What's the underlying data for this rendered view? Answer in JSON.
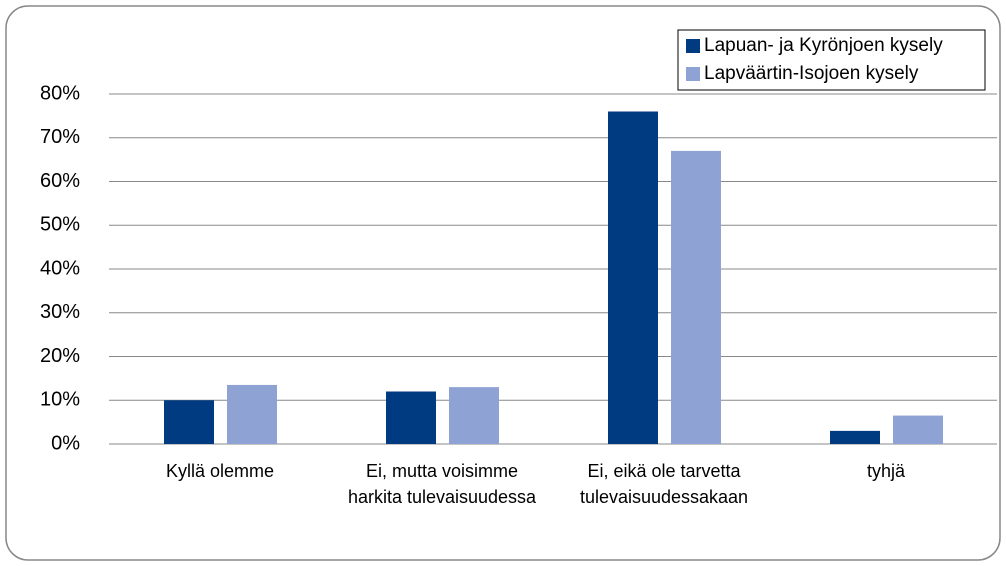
{
  "chart_data": {
    "type": "bar",
    "categories": [
      "Kyllä olemme",
      "Ei, mutta voisimme harkita tulevaisuudessa",
      "Ei, eikä ole tarvetta tulevaisuudessakaan",
      "tyhjä"
    ],
    "series": [
      {
        "name": "Lapuan- ja Kyrönjoen kysely",
        "color": "#003a80",
        "values": [
          10,
          12,
          76,
          3
        ]
      },
      {
        "name": "Lapväärtin-Isojoen kysely",
        "color": "#8fa2d4",
        "values": [
          13.5,
          13,
          67,
          6.5
        ]
      }
    ],
    "ylim": [
      0,
      80
    ],
    "yticks": [
      {
        "value": 0,
        "label": "0%"
      },
      {
        "value": 10,
        "label": "10%"
      },
      {
        "value": 20,
        "label": "20%"
      },
      {
        "value": 30,
        "label": "30%"
      },
      {
        "value": 40,
        "label": "40%"
      },
      {
        "value": 50,
        "label": "50%"
      },
      {
        "value": 60,
        "label": "60%"
      },
      {
        "value": 70,
        "label": "70%"
      },
      {
        "value": 80,
        "label": "80%"
      }
    ],
    "grid": true,
    "legend": "top-right"
  }
}
